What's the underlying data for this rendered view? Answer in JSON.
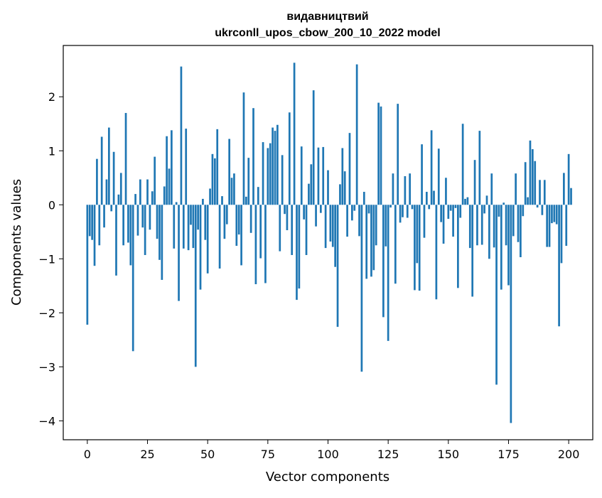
{
  "chart_data": {
    "type": "bar",
    "title": "видавництвий",
    "subtitle": "ukrconll_upos_cbow_200_10_2022 model",
    "xlabel": "Vector components",
    "ylabel": "Components values",
    "xlim": [
      -10,
      210
    ],
    "ylim": [
      -4.35,
      2.95
    ],
    "xticks": [
      0,
      25,
      50,
      75,
      100,
      125,
      150,
      175,
      200
    ],
    "xtick_labels": [
      "0",
      "25",
      "50",
      "75",
      "100",
      "125",
      "150",
      "175",
      "200"
    ],
    "yticks": [
      -4,
      -3,
      -2,
      -1,
      0,
      1,
      2
    ],
    "ytick_labels": [
      "−4",
      "−3",
      "−2",
      "−1",
      "0",
      "1",
      "2"
    ],
    "bar_color": "#1f77b4",
    "grid": false,
    "values": [
      -2.22,
      -0.58,
      -0.65,
      -1.13,
      0.85,
      -0.75,
      1.26,
      -0.42,
      0.47,
      1.43,
      -0.12,
      0.98,
      -1.31,
      0.19,
      0.59,
      -0.75,
      1.7,
      -0.7,
      -1.12,
      -2.71,
      0.2,
      -0.57,
      0.47,
      -0.42,
      -0.93,
      0.47,
      -0.46,
      0.25,
      0.89,
      -0.63,
      -1.02,
      -1.39,
      0.34,
      1.27,
      0.67,
      1.38,
      -0.81,
      0.05,
      -1.78,
      2.56,
      -0.81,
      1.41,
      -0.84,
      -0.37,
      -0.8,
      -3.0,
      -0.46,
      -1.57,
      0.11,
      -0.65,
      -1.27,
      0.3,
      0.94,
      0.86,
      1.4,
      -1.18,
      0.16,
      -0.63,
      -0.36,
      1.22,
      0.5,
      0.58,
      -0.76,
      -0.55,
      -1.12,
      2.08,
      0.15,
      0.87,
      -0.52,
      1.79,
      -1.47,
      0.33,
      -0.99,
      1.16,
      -1.45,
      1.05,
      1.14,
      1.43,
      1.37,
      1.48,
      -0.86,
      0.92,
      -0.17,
      -0.47,
      1.71,
      -0.93,
      2.63,
      -1.76,
      -1.55,
      1.08,
      -0.27,
      -0.93,
      0.39,
      0.75,
      2.12,
      -0.4,
      1.06,
      -0.15,
      1.07,
      -0.8,
      0.64,
      -0.68,
      -0.78,
      -1.15,
      -2.26,
      0.38,
      1.05,
      0.62,
      -0.59,
      1.33,
      -0.29,
      -0.11,
      2.6,
      -0.58,
      -3.09,
      0.24,
      -1.37,
      -0.16,
      -1.33,
      -1.21,
      -0.75,
      1.89,
      1.82,
      -2.08,
      -0.77,
      -2.52,
      -0.05,
      0.58,
      -1.46,
      1.87,
      -0.33,
      -0.23,
      0.53,
      -0.24,
      0.58,
      -0.08,
      -1.58,
      -1.08,
      -1.59,
      1.12,
      -0.61,
      0.24,
      -0.08,
      1.38,
      0.26,
      -1.75,
      1.04,
      -0.32,
      -0.72,
      0.5,
      -0.26,
      -0.11,
      -0.59,
      -0.06,
      -1.54,
      -0.24,
      1.5,
      0.11,
      0.14,
      -0.8,
      -1.7,
      0.83,
      -0.75,
      1.37,
      -0.74,
      -0.16,
      0.17,
      -1.0,
      0.58,
      -0.79,
      -3.33,
      -0.22,
      -1.57,
      0.04,
      -0.75,
      -1.49,
      -4.04,
      -0.58,
      0.58,
      -0.69,
      -0.97,
      -0.21,
      0.79,
      0.14,
      1.19,
      1.03,
      0.81,
      -0.05,
      0.46,
      -0.19,
      0.46,
      -0.78,
      -0.78,
      -0.34,
      -0.32,
      -0.36,
      -2.25,
      -1.08,
      0.59,
      -0.76,
      0.94,
      0.31
    ]
  }
}
